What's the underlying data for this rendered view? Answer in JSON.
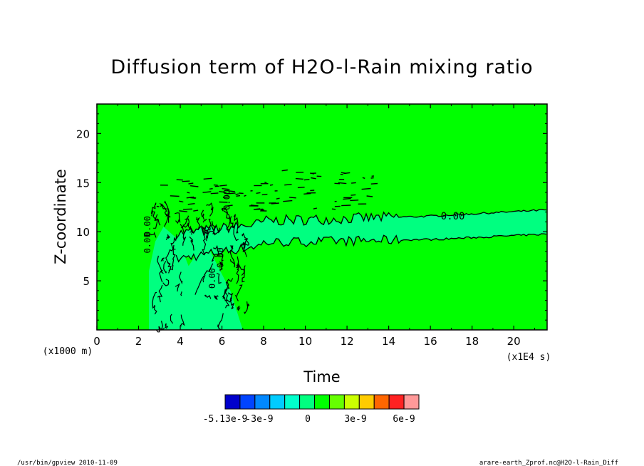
{
  "chart_data": {
    "type": "heatmap",
    "title": "Diffusion term of H2O-l-Rain mixing ratio",
    "xlabel": "Time",
    "ylabel": "Z-coordinate",
    "x_unit": "(x1E4 s)",
    "y_unit": "(x1000 m)",
    "xlim": [
      0,
      21.6
    ],
    "ylim": [
      0,
      23
    ],
    "x_ticks": [
      0,
      2,
      4,
      6,
      8,
      10,
      12,
      14,
      16,
      18,
      20
    ],
    "y_ticks": [
      5,
      10,
      15,
      20
    ],
    "background_color": "#00ff00",
    "band_color": "#00ff80",
    "contour_labels": [
      {
        "text": "0.00",
        "x": 16.5,
        "y": 11.6
      },
      {
        "text": "0.00",
        "x": 2.4,
        "y": 9.5
      },
      {
        "text": "0.00",
        "x": 2.4,
        "y": 7.8
      },
      {
        "text": "0.00",
        "x": 5.5,
        "y": 4.2
      },
      {
        "text": "0.00",
        "x": 6.2,
        "y": 12.2
      },
      {
        "text": "0.00",
        "x": 5.9,
        "y": 6.3
      }
    ],
    "colorbar": {
      "colors": [
        "#0000cc",
        "#0044ff",
        "#0088ff",
        "#00ccff",
        "#00ffcc",
        "#00ff80",
        "#00ff00",
        "#66ff00",
        "#ccff00",
        "#ffcc00",
        "#ff6600",
        "#ff2222",
        "#ff9999"
      ],
      "labels": [
        "-5.13e-9",
        "-3e-9",
        "0",
        "3e-9",
        "6e-9"
      ]
    }
  },
  "footer": {
    "left": "/usr/bin/gpview   2010-11-09",
    "right": "arare-earth_Zprof.nc@H2O-l-Rain_Diff"
  }
}
